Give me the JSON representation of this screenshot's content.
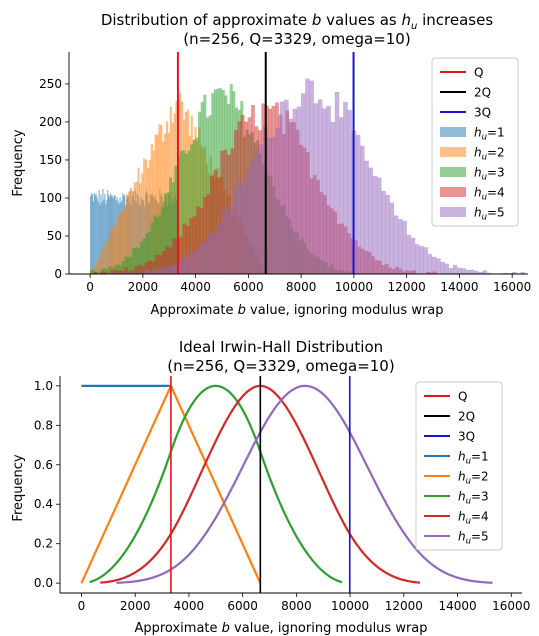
{
  "chart_data": [
    {
      "type": "histogram",
      "title_line1_pre": "Distribution of approximate ",
      "title_line1_italic": "b",
      "title_line1_mid": " values as ",
      "title_line1_var": "h",
      "title_line1_sub": "u",
      "title_line1_post": " increases",
      "title_line2": "(n=256, Q=3329, omega=10)",
      "xlabel_pre": "Approximate ",
      "xlabel_italic": "b",
      "xlabel_post": " value, ignoring modulus wrap",
      "ylabel": "Frequency",
      "xlim": [
        -800,
        16600
      ],
      "ylim": [
        0,
        292
      ],
      "xticks": [
        0,
        2000,
        4000,
        6000,
        8000,
        10000,
        12000,
        14000,
        16000
      ],
      "yticks": [
        0,
        50,
        100,
        150,
        200,
        250
      ],
      "vlines": [
        {
          "label": "Q",
          "x": 3329,
          "color": "#e8141c"
        },
        {
          "label": "2Q",
          "x": 6658,
          "color": "#000000"
        },
        {
          "label": "3Q",
          "x": 9987,
          "color": "#1414d8"
        }
      ],
      "series": [
        {
          "label_var": "h",
          "label_sub": "u",
          "label_post": "=1",
          "color": "#1f77b4",
          "shape": "uniform",
          "range": [
            0,
            3329
          ],
          "level": 100,
          "bin_width": 36
        },
        {
          "label_var": "h",
          "label_sub": "u",
          "label_post": "=2",
          "color": "#ff7f0e",
          "shape": "triangle",
          "range": [
            0,
            6658
          ],
          "peak_x": 3329,
          "peak": 230,
          "bin_width": 72
        },
        {
          "label_var": "h",
          "label_sub": "u",
          "label_post": "=3",
          "color": "#2ca02c",
          "shape": "gaussian",
          "range": [
            0,
            9987
          ],
          "mean": 5000,
          "sd": 1650,
          "peak": 232,
          "bin_width": 100
        },
        {
          "label_var": "h",
          "label_sub": "u",
          "label_post": "=4",
          "color": "#d62728",
          "shape": "gaussian",
          "range": [
            0,
            13316
          ],
          "mean": 6658,
          "sd": 1920,
          "peak": 212,
          "bin_width": 130
        },
        {
          "label_var": "h",
          "label_sub": "u",
          "label_post": "=5",
          "color": "#9467bd",
          "shape": "gaussian",
          "range": [
            0,
            16645
          ],
          "mean": 8350,
          "sd": 2150,
          "peak": 245,
          "bin_width": 160
        }
      ],
      "legend_position": "upper right"
    },
    {
      "type": "line",
      "title_line1": "Ideal Irwin-Hall Distribution",
      "title_line2": "(n=256, Q=3329, omega=10)",
      "xlabel_pre": "Approximate ",
      "xlabel_italic": "b",
      "xlabel_post": " value, ignoring modulus wrap",
      "ylabel": "Frequency",
      "xlim": [
        -800,
        16400
      ],
      "ylim": [
        -0.05,
        1.05
      ],
      "xticks": [
        0,
        2000,
        4000,
        6000,
        8000,
        10000,
        12000,
        14000,
        16000
      ],
      "yticks": [
        0.0,
        0.2,
        0.4,
        0.6,
        0.8,
        1.0
      ],
      "vlines": [
        {
          "label": "Q",
          "x": 3329,
          "color": "#e8141c"
        },
        {
          "label": "2Q",
          "x": 6658,
          "color": "#000000"
        },
        {
          "label": "3Q",
          "x": 9987,
          "color": "#1414d8"
        }
      ],
      "series": [
        {
          "label_var": "h",
          "label_sub": "u",
          "label_post": "=1",
          "color": "#1f77b4",
          "n": 1,
          "x_range": [
            0,
            3329
          ]
        },
        {
          "label_var": "h",
          "label_sub": "u",
          "label_post": "=2",
          "color": "#ff7f0e",
          "n": 2,
          "x_range": [
            0,
            6658
          ]
        },
        {
          "label_var": "h",
          "label_sub": "u",
          "label_post": "=3",
          "color": "#2ca02c",
          "n": 3,
          "x_range": [
            300,
            9700
          ]
        },
        {
          "label_var": "h",
          "label_sub": "u",
          "label_post": "=4",
          "color": "#d62728",
          "n": 4,
          "x_range": [
            700,
            12600
          ]
        },
        {
          "label_var": "h",
          "label_sub": "u",
          "label_post": "=5",
          "color": "#9467bd",
          "n": 5,
          "x_range": [
            1300,
            15300
          ]
        }
      ],
      "legend_position": "upper right"
    }
  ]
}
